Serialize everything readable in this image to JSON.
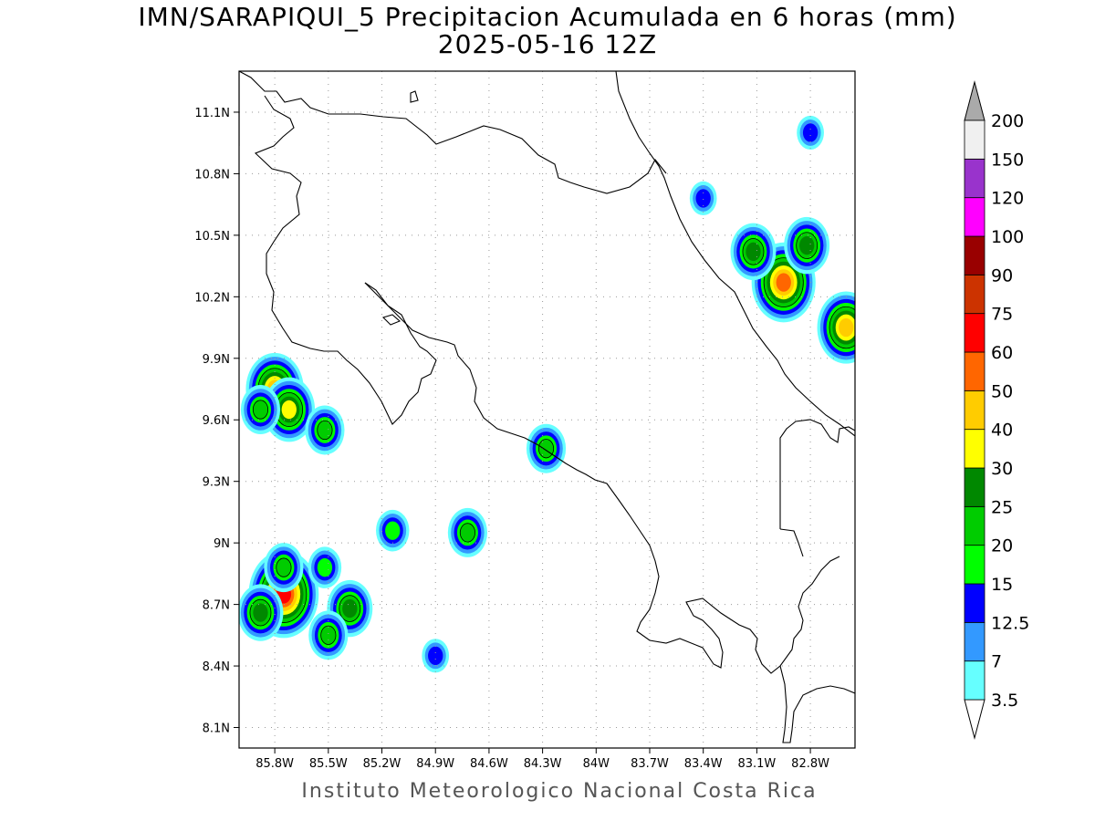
{
  "title": {
    "line1": "IMN/SARAPIQUI_5 Precipitacion Acumulada en 6 horas (mm)",
    "line2": "2025-05-16 12Z"
  },
  "credit": "Instituto Meteorologico Nacional Costa Rica",
  "axes": {
    "x_ticks": [
      "85.8W",
      "85.5W",
      "85.2W",
      "84.9W",
      "84.6W",
      "84.3W",
      "84W",
      "83.7W",
      "83.4W",
      "83.1W",
      "82.8W"
    ],
    "y_ticks": [
      "11.1N",
      "10.8N",
      "10.5N",
      "10.2N",
      "9.9N",
      "9.6N",
      "9.3N",
      "9N",
      "8.7N",
      "8.4N",
      "8.1N"
    ],
    "x_values": [
      -85.8,
      -85.5,
      -85.2,
      -84.9,
      -84.6,
      -84.3,
      -84.0,
      -83.7,
      -83.4,
      -83.1,
      -82.8
    ],
    "y_values": [
      11.1,
      10.8,
      10.5,
      10.2,
      9.9,
      9.6,
      9.3,
      9.0,
      8.7,
      8.4,
      8.1
    ],
    "lon_range": [
      -86.0,
      -82.55
    ],
    "lat_range": [
      8.0,
      11.3
    ]
  },
  "colorbar": {
    "labels": [
      "3.5",
      "7",
      "12.5",
      "15",
      "20",
      "25",
      "30",
      "40",
      "50",
      "60",
      "75",
      "90",
      "100",
      "120",
      "150",
      "200"
    ],
    "colors": [
      "#66ffff",
      "#3399ff",
      "#0000ff",
      "#00ff00",
      "#00cc00",
      "#008800",
      "#ffff00",
      "#ffcc00",
      "#ff6600",
      "#ff0000",
      "#cc3300",
      "#990000",
      "#ff00ff",
      "#9933cc",
      "#f0f0f0"
    ],
    "under_color": "#ffffff",
    "over_color": "#aaaaaa"
  },
  "precip_cells": [
    {
      "lon": -85.8,
      "lat": 9.75,
      "mm": 40
    },
    {
      "lon": -85.72,
      "lat": 9.65,
      "mm": 35
    },
    {
      "lon": -85.88,
      "lat": 9.65,
      "mm": 20
    },
    {
      "lon": -85.52,
      "lat": 9.55,
      "mm": 20
    },
    {
      "lon": -85.75,
      "lat": 8.75,
      "mm": 60
    },
    {
      "lon": -85.88,
      "lat": 8.66,
      "mm": 25
    },
    {
      "lon": -85.38,
      "lat": 8.68,
      "mm": 25
    },
    {
      "lon": -85.5,
      "lat": 8.55,
      "mm": 20
    },
    {
      "lon": -85.52,
      "lat": 8.88,
      "mm": 15
    },
    {
      "lon": -85.75,
      "lat": 8.88,
      "mm": 20
    },
    {
      "lon": -84.28,
      "lat": 9.46,
      "mm": 20
    },
    {
      "lon": -84.72,
      "lat": 9.05,
      "mm": 20
    },
    {
      "lon": -85.14,
      "lat": 9.06,
      "mm": 15
    },
    {
      "lon": -84.9,
      "lat": 8.45,
      "mm": 12.5
    },
    {
      "lon": -82.95,
      "lat": 10.27,
      "mm": 50
    },
    {
      "lon": -83.12,
      "lat": 10.42,
      "mm": 25
    },
    {
      "lon": -82.82,
      "lat": 10.45,
      "mm": 25
    },
    {
      "lon": -82.6,
      "lat": 10.05,
      "mm": 40
    },
    {
      "lon": -83.4,
      "lat": 10.68,
      "mm": 12.5
    },
    {
      "lon": -82.8,
      "lat": 11.0,
      "mm": 12.5
    }
  ]
}
